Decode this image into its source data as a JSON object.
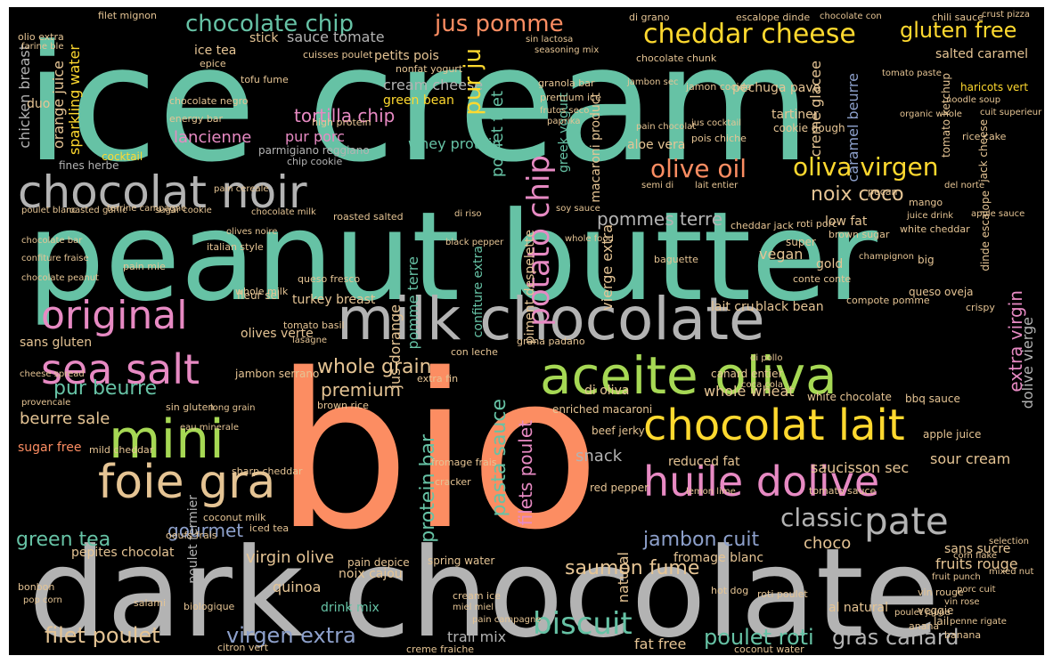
{
  "palette": {
    "teal": "#66c2a5",
    "orange": "#fc8d62",
    "blue": "#8da0cb",
    "pink": "#e78ac3",
    "green": "#a6d854",
    "yellow": "#ffd92f",
    "tan": "#e5c494",
    "gray": "#b3b3b3"
  },
  "words": {
    "ice_cream": "ice cream",
    "peanut_butter": "peanut butter",
    "dark_chocolate": "dark chocolate",
    "bio": "bio",
    "milk_chocolate": "milk chocolate",
    "chocolat_noir": "chocolat noir",
    "aceite_oliva": "aceite oliva",
    "chocolat_lait": "chocolat lait",
    "huile_dolive": "huile dolive",
    "mini": "mini",
    "foie_gra": "foie gra",
    "sea_salt": "sea salt",
    "original": "original",
    "pate": "pate",
    "chocolate_chip": "chocolate chip",
    "cheddar_cheese": "cheddar cheese",
    "jus_pomme": "jus pomme",
    "gluten_free": "gluten free",
    "olive_oil": "olive oil",
    "oliva_virgen": "oliva virgen",
    "potato_chip": "potato chip",
    "classic": "classic",
    "biscuit": "biscuit",
    "gras_canard": "gras canard",
    "filet_poulet": "filet poulet",
    "virgen_extra": "virgen extra",
    "poulet_roti": "poulet roti",
    "pur_beurre": "pur beurre",
    "whole_grain": "whole grain",
    "premium": "premium",
    "jambon_cuit": "jambon cuit",
    "saumon_fume": "saumon fume",
    "green_tea": "green tea",
    "gourmet": "gourmet",
    "pasta_sauce": "pasta sauce",
    "protein_bar": "protein bar",
    "filets_poulet": "filets poulet",
    "pommes_terre": "pommes terre",
    "noix_coco": "noix coco",
    "tortilla_chip": "tortilla chip",
    "lancienne": "lancienne",
    "pur_porc": "pur porc",
    "cream_cheese": "cream cheese",
    "sauce_tomate": "sauce tomate",
    "whey_protein": "whey protein",
    "poulet_filet": "poulet filet",
    "beurre_sale": "beurre sale",
    "sugar_free": "sugar free",
    "sans_gluten": "sans gluten",
    "trail_mix": "trail mix",
    "fat_free": "fat free",
    "fruits_rouge": "fruits rouge",
    "sans_sucre": "sans sucre",
    "choco": "choco",
    "virgin_olive": "virgin olive",
    "pepites_chocolat": "pepites chocolat",
    "drink_mix": "drink mix",
    "quinoa": "quinoa",
    "snack": "snack",
    "reduced_fat": "reduced fat",
    "saucisson_sec": "saucisson sec",
    "sour_cream": "sour cream",
    "extra_virgin": "extra virgin",
    "dolive_vierge": "dolive vierge",
    "chicken_breast": "chicken breast",
    "orange_juice": "orange juice",
    "sparkling_water": "sparkling water",
    "caramel_beurre": "caramel beurre",
    "salted_caramel": "salted caramel",
    "creme_glacee": "creme glacee",
    "greek_yogurt": "greek yogurt",
    "macaroni_product": "macaroni product",
    "pur_ju": "pur ju",
    "jus_dorange": "jus dorange",
    "pomme_terre": "pomme terre",
    "vierge_extra": "vierge extra",
    "poulet_fermier": "poulet fermier",
    "confiture_extra": "confiture extra",
    "piment_despelette": "piment despelette",
    "whole_wheat": "whole wheat",
    "natural": "natural",
    "black_bean": "black bean",
    "lait_cru": "lait cru",
    "turkey_breast": "turkey breast",
    "noix_cajou": "noix cajou",
    "pain_depice": "pain depice",
    "fromage_blanc": "fromage blanc",
    "jambon_serrano": "jambon serrano",
    "ice_tea": "ice tea",
    "petits_pois": "petits pois",
    "green_bean": "green bean",
    "aloe_vera": "aloe vera",
    "low_fat": "low fat",
    "vegan": "vegan",
    "tartiner": "tartiner",
    "fines_herbe": "fines herbe",
    "parmigiano_reggiano": "parmigiano reggiano",
    "cocktail": "cocktail",
    "whole_milk": "whole milk",
    "olives_verte": "olives verte",
    "di_oliva": "di oliva",
    "white_chocolate": "white chocolate",
    "bbq_sauce": "bbq sauce",
    "enriched_macaroni": "enriched macaroni",
    "chip_cookie": "chip cookie",
    "pechuga_pavo": "pechuga pavo",
    "cookie_dough": "cookie dough",
    "jamon_cocido": "jamon cocido",
    "tomato_ketchup": "tomato ketchup",
    "rice_cake": "rice cake",
    "jack_cheese": "jack cheese",
    "brown_sugar": "brown sugar",
    "conte_conte": "conte conte",
    "vin_rouge": "vin rouge",
    "coconut_milk": "coconut milk",
    "spring_water": "spring water",
    "cracker": "cracker",
    "red_pepper": "red pepper",
    "beef_jerky": "beef jerky",
    "tomato_sauce": "tomato sauce",
    "apple_juice": "apple juice",
    "fromage_frais": "fromage frais",
    "cheddar_jack": "cheddar jack",
    "poulet_roti_small": "roti poulet",
    "al_natural": "al natural",
    "cream_ice": "cream ice",
    "hot_dog": "hot dog",
    "tofu_fume": "tofu fume",
    "chocolate_negro": "chocolate negro",
    "energy_bar": "energy bar",
    "high_protein": "high protein",
    "nonfat_yogurt": "nonfat yogurt",
    "granola_bar": "granola bar",
    "premium_ice": "premium ice",
    "chocolate_chunk": "chocolate chunk",
    "haricots_vert": "haricots vert",
    "escalope_dinde": "escalope dinde",
    "chili_sauce": "chili sauce",
    "crust_pizza": "crust pizza",
    "di_grano": "di grano",
    "jambon_sec": "jambon sec",
    "chocolate_con": "chocolate con",
    "filet_mignon": "filet mignon",
    "olio_extra": "olio extra",
    "cuisses_poulet": "cuisses poulet",
    "farine_ble": "farine ble",
    "stick": "stick",
    "epice": "epice",
    "lait_entier": "lait entier",
    "poulet_jaune": "poulet jaune",
    "pecan": "pecan",
    "lemon_lime": "lemon lime",
    "super": "super",
    "mango": "mango",
    "big": "big",
    "gold": "gold",
    "duo": "duo",
    "pain_mie": "pain mie",
    "fleur_sel": "fleur sel",
    "queso_fresco": "queso fresco",
    "tomato_basil": "tomato basil",
    "grana_padano": "grana padano",
    "con_leche": "con leche",
    "extra_fin": "extra fin",
    "brown_rice": "brown rice",
    "sin_gluten": "sin gluten",
    "mild_cheddar": "mild cheddar",
    "sharp_cheddar": "sharp cheddar",
    "long_grain": "long grain",
    "eau_minerale": "eau minerale",
    "oeufs_frais": "oeufs frais",
    "iced_tea": "iced tea",
    "biologique": "biologique",
    "salami": "salami",
    "bonbon": "bonbon",
    "pop_corn": "pop corn",
    "citron_vert": "citron vert",
    "creme_fraiche": "creme fraiche",
    "coconut_water": "coconut water",
    "miel_miel": "miel miel",
    "pain_campagne": "pain campagne",
    "veggie": "veggie",
    "anana": "anana",
    "lail": "lail",
    "banana": "banana",
    "penne_rigate": "penne rigate",
    "vin_rose": "vin rose",
    "porc_cuit": "porc cuit",
    "fruit_punch": "fruit punch",
    "mixed_nut": "mixed nut",
    "selection": "selection",
    "coca_cola": "coca cola",
    "canard_entier": "canard entier",
    "di_pollo": "di pollo",
    "crispy": "crispy",
    "queso_oveja": "queso oveja",
    "compote_pomme": "compote pomme",
    "roti_porc": "roti porc",
    "juice_drink": "juice drink",
    "apple_sauce": "apple sauce",
    "white_cheddar": "white cheddar",
    "dinde_escalope": "dinde escalope",
    "champignon": "champignon",
    "baguette": "baguette",
    "soy_sauce": "soy sauce",
    "black_pepper": "black pepper",
    "roasted_salted": "roasted salted",
    "whole_food": "whole food",
    "italian_style": "italian style",
    "olives_noire": "olives noire",
    "sugar_cookie": "sugar cookie",
    "chocolate_milk": "chocolate milk",
    "pain_cereale": "pain cereale",
    "poulet_blanc": "poulet blanc",
    "roasted_garlic": "roasted garlic",
    "terrine_campagne": "terrine campagne",
    "chocolate_bar": "chocolate bar",
    "confiture_fraise": "confiture fraise",
    "chocolate_peanut": "chocolate peanut",
    "lasagne": "lasagne",
    "cheese_spread": "cheese spread",
    "provencale": "provencale",
    "frutos_seco": "frutos seco",
    "paprika": "paprika",
    "pain_chocolat": "pain chocolat",
    "pois_chiche": "pois chiche",
    "jus_cocktail": "jus cocktail",
    "di_riso": "di riso",
    "semi_di": "semi di",
    "del_norte": "del norte",
    "seasoning_mix": "seasoning mix",
    "sin_lactosa": "sin lactosa",
    "tomato_paste": "tomato paste",
    "corn_flake": "corn flake",
    "noodle_soup": "noodle soup",
    "organic_whole": "organic whole",
    "cuit_superieur": "cuit superieur"
  }
}
